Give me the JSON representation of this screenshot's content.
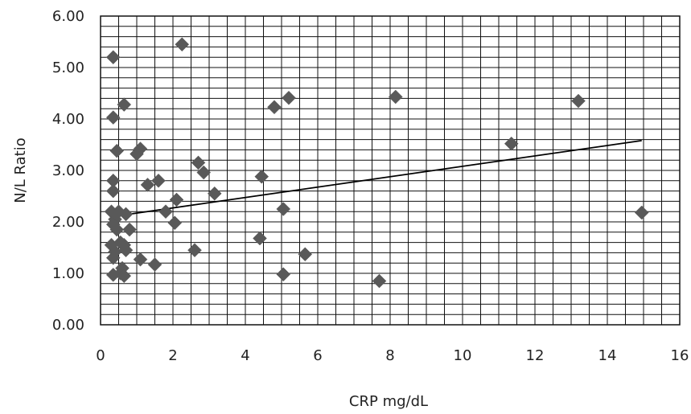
{
  "colors": {
    "marker": "#595959",
    "grid": "#111111",
    "trendline": "#000000",
    "background": "#ffffff"
  },
  "chart_data": {
    "type": "scatter",
    "xlabel": "CRP mg/dL",
    "ylabel": "N/L Ratio",
    "xlim": [
      0,
      16
    ],
    "ylim": [
      0,
      6
    ],
    "x_ticks": [
      "0",
      "2",
      "4",
      "6",
      "8",
      "10",
      "12",
      "14",
      "16"
    ],
    "y_ticks": [
      "0.00",
      "1.00",
      "2.00",
      "3.00",
      "4.00",
      "5.00",
      "6.00"
    ],
    "x_tick_values": [
      0,
      2,
      4,
      6,
      8,
      10,
      12,
      14,
      16
    ],
    "y_tick_values": [
      0,
      1,
      2,
      3,
      4,
      5,
      6
    ],
    "grid": true,
    "marker": "diamond",
    "points": [
      {
        "x": 0.35,
        "y": 5.2
      },
      {
        "x": 2.25,
        "y": 5.45
      },
      {
        "x": 0.35,
        "y": 4.03
      },
      {
        "x": 0.65,
        "y": 4.28
      },
      {
        "x": 0.45,
        "y": 3.38
      },
      {
        "x": 1.0,
        "y": 3.32
      },
      {
        "x": 1.1,
        "y": 3.42
      },
      {
        "x": 0.35,
        "y": 2.8
      },
      {
        "x": 0.35,
        "y": 2.6
      },
      {
        "x": 1.3,
        "y": 2.72
      },
      {
        "x": 1.6,
        "y": 2.8
      },
      {
        "x": 2.7,
        "y": 3.15
      },
      {
        "x": 2.85,
        "y": 2.96
      },
      {
        "x": 3.15,
        "y": 2.55
      },
      {
        "x": 2.1,
        "y": 2.43
      },
      {
        "x": 1.8,
        "y": 2.2
      },
      {
        "x": 2.05,
        "y": 1.98
      },
      {
        "x": 0.3,
        "y": 2.2
      },
      {
        "x": 0.5,
        "y": 2.2
      },
      {
        "x": 0.4,
        "y": 2.05
      },
      {
        "x": 0.7,
        "y": 2.15
      },
      {
        "x": 0.35,
        "y": 1.95
      },
      {
        "x": 0.45,
        "y": 1.85
      },
      {
        "x": 0.8,
        "y": 1.85
      },
      {
        "x": 0.3,
        "y": 1.55
      },
      {
        "x": 0.55,
        "y": 1.6
      },
      {
        "x": 0.65,
        "y": 1.55
      },
      {
        "x": 0.4,
        "y": 1.42
      },
      {
        "x": 0.7,
        "y": 1.45
      },
      {
        "x": 0.35,
        "y": 1.3
      },
      {
        "x": 1.1,
        "y": 1.27
      },
      {
        "x": 1.5,
        "y": 1.17
      },
      {
        "x": 0.6,
        "y": 1.1
      },
      {
        "x": 0.35,
        "y": 0.97
      },
      {
        "x": 0.55,
        "y": 1.0
      },
      {
        "x": 0.65,
        "y": 0.95
      },
      {
        "x": 2.6,
        "y": 1.45
      },
      {
        "x": 4.4,
        "y": 1.68
      },
      {
        "x": 5.05,
        "y": 0.98
      },
      {
        "x": 5.65,
        "y": 1.37
      },
      {
        "x": 5.05,
        "y": 2.25
      },
      {
        "x": 4.45,
        "y": 2.88
      },
      {
        "x": 4.8,
        "y": 4.23
      },
      {
        "x": 5.2,
        "y": 4.41
      },
      {
        "x": 8.15,
        "y": 4.43
      },
      {
        "x": 7.7,
        "y": 0.85
      },
      {
        "x": 11.35,
        "y": 3.52
      },
      {
        "x": 13.2,
        "y": 4.35
      },
      {
        "x": 14.95,
        "y": 2.18
      }
    ],
    "trendline": {
      "x": [
        0.3,
        14.95
      ],
      "y": [
        2.1,
        3.58
      ]
    }
  }
}
